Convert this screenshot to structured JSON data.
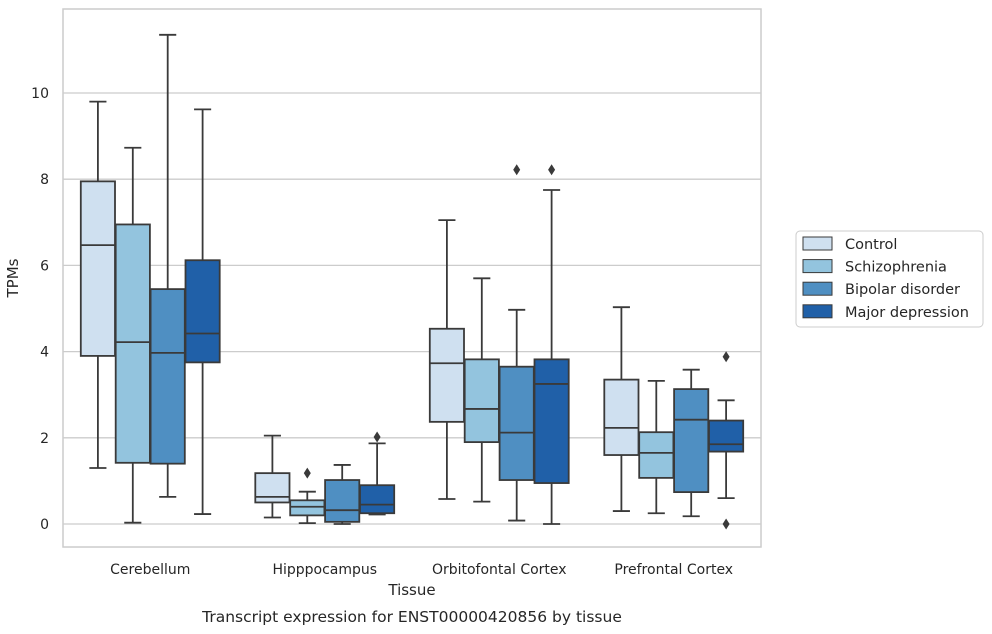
{
  "chart_data": {
    "type": "box",
    "title": "",
    "caption": "Transcript expression for ENST00000420856 by tissue",
    "xlabel": "Tissue",
    "ylabel": "TPMs",
    "ylim": [
      -0.55,
      11.95
    ],
    "yticks": [
      0,
      2,
      4,
      6,
      8,
      10
    ],
    "grid": true,
    "legend_position": "right",
    "categories": [
      "Cerebellum",
      "Hipppocampus",
      "Orbitofontal Cortex",
      "Prefrontal Cortex"
    ],
    "series": [
      {
        "name": "Control",
        "color": "#cfe0f0",
        "boxes": [
          {
            "whislo": 1.3,
            "q1": 3.9,
            "med": 6.47,
            "q3": 7.95,
            "whishi": 9.8,
            "fliers": []
          },
          {
            "whislo": 0.15,
            "q1": 0.5,
            "med": 0.63,
            "q3": 1.18,
            "whishi": 2.05,
            "fliers": []
          },
          {
            "whislo": 0.58,
            "q1": 2.37,
            "med": 3.73,
            "q3": 4.53,
            "whishi": 7.05,
            "fliers": []
          },
          {
            "whislo": 0.3,
            "q1": 1.6,
            "med": 2.23,
            "q3": 3.35,
            "whishi": 5.03,
            "fliers": []
          }
        ]
      },
      {
        "name": "Schizophrenia",
        "color": "#93c4de",
        "boxes": [
          {
            "whislo": 0.03,
            "q1": 1.42,
            "med": 4.22,
            "q3": 6.95,
            "whishi": 8.73,
            "fliers": []
          },
          {
            "whislo": 0.02,
            "q1": 0.2,
            "med": 0.4,
            "q3": 0.55,
            "whishi": 0.75,
            "fliers": [
              1.18
            ]
          },
          {
            "whislo": 0.52,
            "q1": 1.9,
            "med": 2.67,
            "q3": 3.82,
            "whishi": 5.7,
            "fliers": []
          },
          {
            "whislo": 0.25,
            "q1": 1.07,
            "med": 1.65,
            "q3": 2.13,
            "whishi": 3.32,
            "fliers": []
          }
        ]
      },
      {
        "name": "Bipolar disorder",
        "color": "#4f8fc2",
        "boxes": [
          {
            "whislo": 0.63,
            "q1": 1.4,
            "med": 3.97,
            "q3": 5.45,
            "whishi": 11.35,
            "fliers": []
          },
          {
            "whislo": 0.0,
            "q1": 0.05,
            "med": 0.32,
            "q3": 1.02,
            "whishi": 1.37,
            "fliers": []
          },
          {
            "whislo": 0.08,
            "q1": 1.02,
            "med": 2.12,
            "q3": 3.65,
            "whishi": 4.97,
            "fliers": [
              8.22
            ]
          },
          {
            "whislo": 0.18,
            "q1": 0.74,
            "med": 2.42,
            "q3": 3.13,
            "whishi": 3.58,
            "fliers": []
          }
        ]
      },
      {
        "name": "Major depression",
        "color": "#2060a8",
        "boxes": [
          {
            "whislo": 0.23,
            "q1": 3.75,
            "med": 4.42,
            "q3": 6.12,
            "whishi": 9.62,
            "fliers": []
          },
          {
            "whislo": 0.22,
            "q1": 0.25,
            "med": 0.45,
            "q3": 0.9,
            "whishi": 1.87,
            "fliers": [
              2.02
            ]
          },
          {
            "whislo": 0.0,
            "q1": 0.95,
            "med": 3.25,
            "q3": 3.82,
            "whishi": 7.75,
            "fliers": [
              8.22
            ]
          },
          {
            "whislo": 0.6,
            "q1": 1.68,
            "med": 1.85,
            "q3": 2.4,
            "whishi": 2.87,
            "fliers": [
              3.88,
              0.0
            ]
          }
        ]
      }
    ]
  }
}
